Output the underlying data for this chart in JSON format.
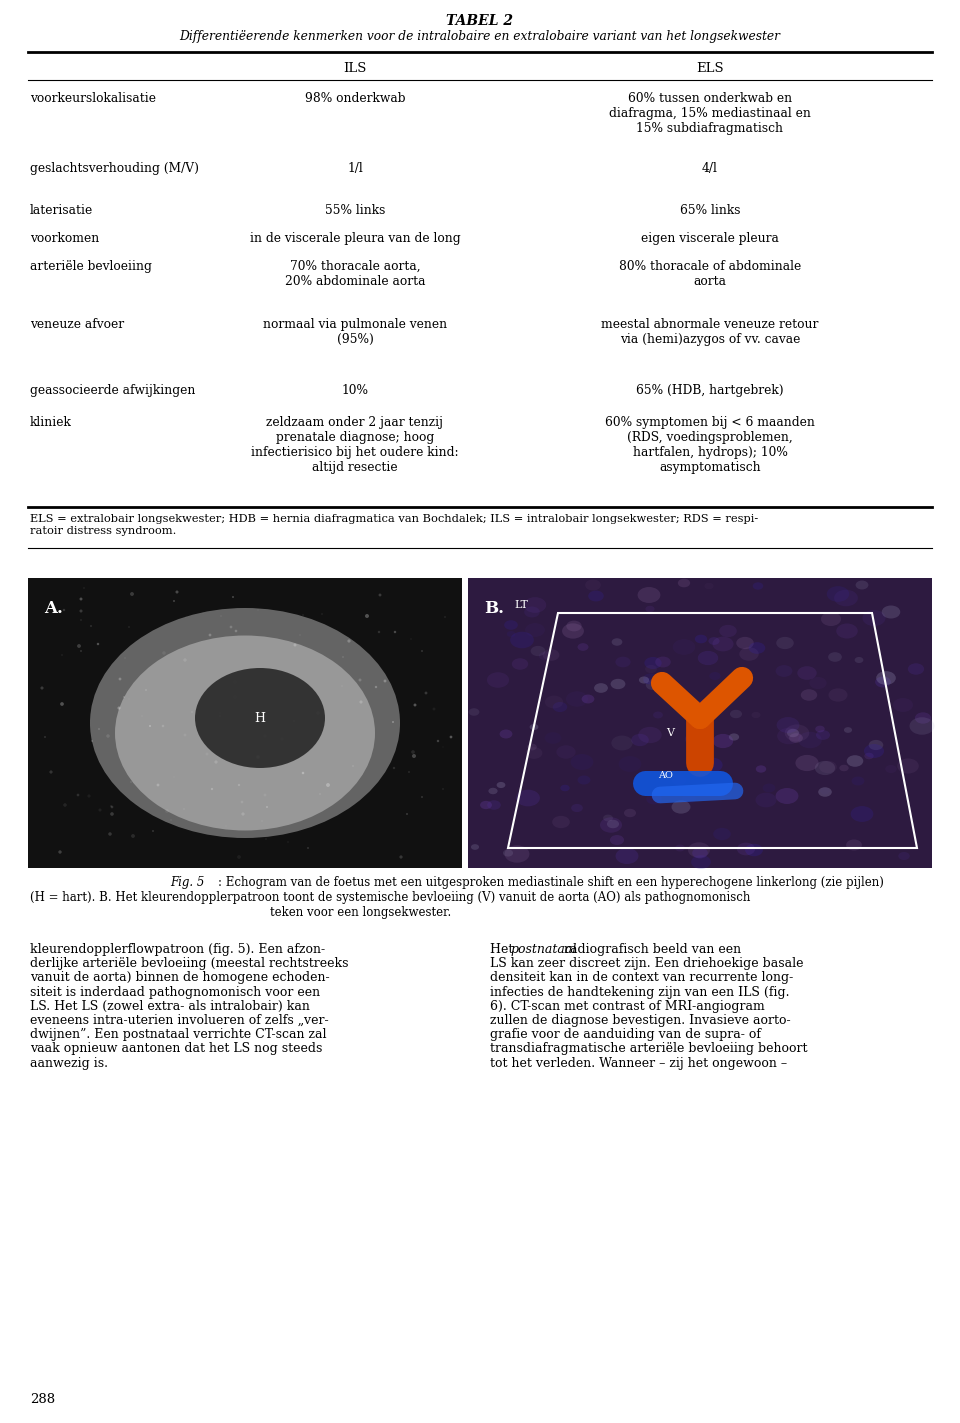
{
  "title1": "TABEL 2",
  "title2": "Differentiëerende kenmerken voor de intralobaire en extralobaire variant van het longsekwester",
  "rows": [
    {
      "label": "voorkeurslokalisatie",
      "ils": "98% onderkwab",
      "els": "60% tussen onderkwab en\ndiafragma, 15% mediastinaal en\n15% subdiafragmatisch"
    },
    {
      "label": "geslachtsverhouding (M/V)",
      "ils": "1/l",
      "els": "4/l"
    },
    {
      "label": "laterisatie",
      "ils": "55% links",
      "els": "65% links"
    },
    {
      "label": "voorkomen",
      "ils": "in de viscerale pleura van de long",
      "els": "eigen viscerale pleura"
    },
    {
      "label": "arteriële bevloeiing",
      "ils": "70% thoracale aorta,\n20% abdominale aorta",
      "els": "80% thoracale of abdominale\naorta"
    },
    {
      "label": "veneuze afvoer",
      "ils": "normaal via pulmonale venen\n(95%)",
      "els": "meestal abnormale veneuze retour\nvia (hemi)azygos of vv. cavae"
    },
    {
      "label": "geassocieerde afwijkingen",
      "ils": "10%",
      "els": "65% (HDB, hartgebrek)"
    },
    {
      "label": "kliniek",
      "ils": "zeldzaam onder 2 jaar tenzij\nprenatale diagnose; hoog\ninfectierisico bij het oudere kind:\naltijd resectie",
      "els": "60% symptomen bij < 6 maanden\n(RDS, voedingsproblemen,\nhartfalen, hydrops); 10%\nasymptomatisch"
    }
  ],
  "footnote": "ELS = extralobair longsekwester; HDB = hernia diafragmatica van Bochdalek; ILS = intralobair longsekwester; RDS = respi-\nratoir distress syndroom.",
  "fig_caption_italic": "Fig. 5",
  "fig_caption_rest": ": Echogram van de foetus met een uitgesproken mediastinale shift en een hyperechogene linkerlong (zie pijlen)\n(H = hart). B. Het kleurendopplerpatroon toont de systemische bevloeiing (V) vanuit de aorta (AO) als pathognomonisch\nteken voor een longsekwester.",
  "body_left": "kleurendopplerflowpatroon (fig. 5). Een afzon-\nderlijke arteriële bevloeiing (meestal rechtstreeks\nvanuit de aorta) binnen de homogene echoden-\nsiteit is inderdaad pathognomonisch voor een\nLS. Het LS (zowel extra- als intralobair) kan\neveneens intra-uterien involueren of zelfs „ver-\ndwijnen”. Een postnataal verrichte CT-scan zal\nvaak opnieuw aantonen dat het LS nog steeds\naanwezig is.",
  "body_right_pre": "Het ",
  "body_right_italic": "postnataal",
  "body_right_post": " radiografisch beeld van een\nLS kan zeer discreet zijn. Een driehoekige basale\ndensiteit kan in de context van recurrente long-\ninfecties de handtekening zijn van een ILS (fig.\n6). CT-scan met contrast of MRI-angiogram\nzullen de diagnose bevestigen. Invasieve aorto-\ngrafie voor de aanduiding van de supra- of\ntransdiafragmatische arteriële bevloeiing behoort\ntot het verleden. Wanneer – zij het ongewoon –",
  "page_number": "288",
  "background_color": "#ffffff",
  "text_color": "#000000",
  "img_a_color": "#111111",
  "img_b_color": "#2d1a40"
}
